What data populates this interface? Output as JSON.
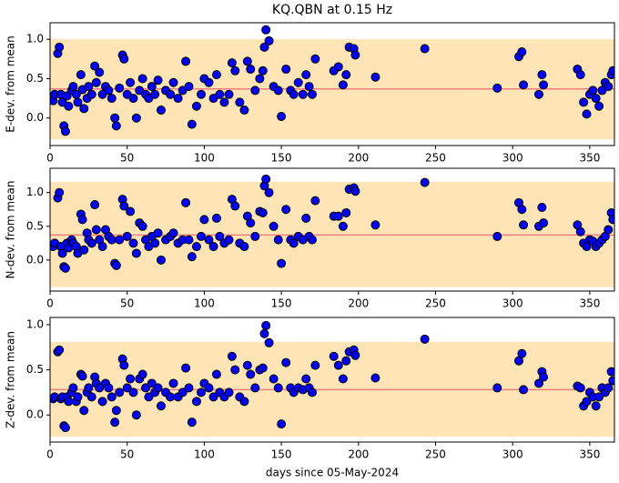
{
  "chart_data": [
    {
      "type": "scatter",
      "title": "KQ.QBN at 0.15 Hz",
      "ylabel": "E-dev. from mean",
      "x": [
        2,
        3,
        5,
        6,
        7,
        8,
        9,
        10,
        11,
        12,
        14,
        15,
        17,
        18,
        20,
        21,
        22,
        24,
        25,
        27,
        29,
        30,
        32,
        34,
        36,
        38,
        40,
        42,
        43,
        45,
        47,
        48,
        50,
        52,
        54,
        56,
        58,
        60,
        62,
        64,
        66,
        68,
        70,
        72,
        75,
        78,
        80,
        83,
        86,
        88,
        90,
        92,
        95,
        98,
        100,
        103,
        106,
        108,
        110,
        113,
        116,
        118,
        120,
        123,
        126,
        128,
        130,
        133,
        136,
        138,
        139,
        140,
        142,
        145,
        148,
        150,
        153,
        156,
        158,
        161,
        164,
        166,
        168,
        170,
        172,
        184,
        187,
        190,
        192,
        194,
        197,
        198,
        211,
        243,
        290,
        304,
        306,
        307,
        317,
        319,
        320,
        342,
        344,
        346,
        348,
        350,
        352,
        354,
        356,
        358,
        360,
        362,
        364,
        365
      ],
      "values": [
        0.22,
        0.3,
        0.82,
        0.9,
        0.3,
        0.2,
        -0.1,
        -0.17,
        0.28,
        0.15,
        0.35,
        0.4,
        0.3,
        0.2,
        0.55,
        0.36,
        0.12,
        0.25,
        0.4,
        0.3,
        0.66,
        0.45,
        0.58,
        0.3,
        0.4,
        0.35,
        0.25,
        0.0,
        -0.1,
        0.38,
        0.8,
        0.75,
        0.3,
        0.45,
        0.25,
        0.0,
        0.35,
        0.5,
        0.3,
        0.25,
        0.4,
        0.3,
        0.48,
        0.1,
        0.35,
        0.3,
        0.45,
        0.25,
        0.35,
        0.72,
        0.4,
        -0.08,
        0.15,
        0.3,
        0.5,
        0.45,
        0.25,
        0.55,
        0.3,
        0.2,
        0.3,
        0.7,
        0.6,
        0.2,
        0.1,
        0.72,
        0.62,
        0.35,
        0.5,
        0.6,
        0.9,
        1.12,
        0.98,
        0.4,
        0.35,
        0.02,
        0.62,
        0.35,
        0.3,
        0.45,
        0.3,
        0.55,
        0.4,
        0.3,
        0.75,
        0.6,
        0.65,
        0.42,
        0.55,
        0.9,
        0.88,
        0.8,
        0.52,
        0.88,
        0.38,
        0.78,
        0.84,
        0.42,
        0.3,
        0.55,
        0.42,
        0.62,
        0.55,
        0.2,
        0.05,
        0.3,
        0.35,
        0.25,
        0.15,
        0.35,
        0.45,
        0.4,
        0.55,
        0.6
      ],
      "color": "#0000ff",
      "mean": 0.37,
      "mean_color": "#f08080",
      "band": [
        -0.27,
        1.0
      ],
      "band_color": "#ffe4b5",
      "xlim": [
        0,
        366
      ],
      "xticks": [
        0,
        50,
        100,
        150,
        200,
        250,
        300,
        350
      ],
      "ylim": [
        -0.35,
        1.21
      ],
      "yticks": [
        {
          "value": 0,
          "label": "0.0"
        },
        {
          "value": 0.5,
          "label": "0.5"
        },
        {
          "value": 1,
          "label": "1.0"
        }
      ]
    },
    {
      "type": "scatter",
      "ylabel": "N-dev. from mean",
      "x": [
        2,
        3,
        5,
        6,
        7,
        8,
        9,
        10,
        11,
        12,
        14,
        15,
        17,
        18,
        20,
        21,
        22,
        24,
        25,
        27,
        29,
        30,
        32,
        34,
        36,
        38,
        40,
        42,
        43,
        45,
        47,
        48,
        50,
        52,
        54,
        56,
        58,
        60,
        62,
        64,
        66,
        68,
        70,
        72,
        75,
        78,
        80,
        83,
        86,
        88,
        90,
        92,
        95,
        98,
        100,
        103,
        106,
        108,
        110,
        113,
        116,
        118,
        120,
        123,
        126,
        128,
        130,
        133,
        136,
        138,
        139,
        140,
        142,
        145,
        148,
        150,
        153,
        156,
        158,
        161,
        164,
        166,
        168,
        170,
        172,
        184,
        187,
        190,
        192,
        194,
        197,
        198,
        211,
        243,
        290,
        304,
        306,
        307,
        317,
        319,
        320,
        342,
        344,
        346,
        348,
        350,
        352,
        354,
        356,
        358,
        360,
        362,
        364,
        365
      ],
      "values": [
        0.2,
        0.25,
        0.92,
        1.0,
        0.2,
        0.1,
        -0.1,
        -0.12,
        0.25,
        0.18,
        0.3,
        0.25,
        0.2,
        0.1,
        0.68,
        0.6,
        0.15,
        0.4,
        0.3,
        0.25,
        0.82,
        0.45,
        0.3,
        0.2,
        0.45,
        0.35,
        0.3,
        -0.05,
        -0.08,
        0.3,
        0.9,
        0.8,
        0.35,
        0.72,
        0.25,
        0.1,
        0.55,
        0.5,
        0.3,
        0.2,
        0.35,
        0.25,
        0.4,
        0.0,
        0.3,
        0.35,
        0.4,
        0.25,
        0.3,
        0.85,
        0.3,
        0.05,
        0.2,
        0.35,
        0.6,
        0.3,
        0.2,
        0.62,
        0.35,
        0.25,
        0.3,
        0.9,
        0.8,
        0.25,
        0.2,
        0.65,
        0.55,
        0.35,
        0.72,
        0.7,
        1.1,
        1.2,
        1.0,
        0.5,
        0.3,
        -0.05,
        0.75,
        0.3,
        0.25,
        0.35,
        0.3,
        0.62,
        0.35,
        0.3,
        0.88,
        0.65,
        0.65,
        0.5,
        0.7,
        1.05,
        1.07,
        1.02,
        0.52,
        1.15,
        0.35,
        0.85,
        0.75,
        0.52,
        0.5,
        0.78,
        0.55,
        0.52,
        0.42,
        0.25,
        0.2,
        0.3,
        0.28,
        0.2,
        0.25,
        0.3,
        0.35,
        0.45,
        0.7,
        0.6
      ],
      "color": "#0000ff",
      "mean": 0.37,
      "mean_color": "#f08080",
      "band": [
        -0.4,
        1.16
      ],
      "band_color": "#ffe4b5",
      "xlim": [
        0,
        366
      ],
      "xticks": [
        0,
        50,
        100,
        150,
        200,
        250,
        300,
        350
      ],
      "ylim": [
        -0.46,
        1.36
      ],
      "yticks": [
        {
          "value": 0,
          "label": "0.0"
        },
        {
          "value": 0.5,
          "label": "0.5"
        },
        {
          "value": 1,
          "label": "1.0"
        }
      ]
    },
    {
      "type": "scatter",
      "ylabel": "Z-dev. from mean",
      "xlabel": "days since 05-May-2024",
      "x": [
        2,
        3,
        5,
        6,
        7,
        8,
        9,
        10,
        11,
        12,
        14,
        15,
        17,
        18,
        20,
        21,
        22,
        24,
        25,
        27,
        29,
        30,
        32,
        34,
        36,
        38,
        40,
        42,
        43,
        45,
        47,
        48,
        50,
        52,
        54,
        56,
        58,
        60,
        62,
        64,
        66,
        68,
        70,
        72,
        75,
        78,
        80,
        83,
        86,
        88,
        90,
        92,
        95,
        98,
        100,
        103,
        106,
        108,
        110,
        113,
        116,
        118,
        120,
        123,
        126,
        128,
        130,
        133,
        136,
        138,
        139,
        140,
        142,
        145,
        148,
        150,
        153,
        156,
        158,
        161,
        164,
        166,
        168,
        170,
        172,
        184,
        187,
        190,
        192,
        194,
        197,
        198,
        211,
        243,
        290,
        304,
        306,
        307,
        317,
        319,
        320,
        342,
        344,
        346,
        348,
        350,
        352,
        354,
        356,
        358,
        360,
        362,
        364,
        365
      ],
      "values": [
        0.18,
        0.2,
        0.7,
        0.72,
        0.18,
        0.2,
        -0.12,
        -0.14,
        0.2,
        0.15,
        0.25,
        0.3,
        0.15,
        0.2,
        0.45,
        0.43,
        0.05,
        0.25,
        0.3,
        0.2,
        0.42,
        0.35,
        0.3,
        0.15,
        0.35,
        0.3,
        0.2,
        -0.08,
        0.05,
        0.25,
        0.62,
        0.55,
        0.3,
        0.4,
        0.25,
        0.0,
        0.4,
        0.45,
        0.3,
        0.2,
        0.35,
        0.25,
        0.3,
        0.1,
        0.25,
        0.2,
        0.35,
        0.2,
        0.25,
        0.52,
        0.3,
        -0.08,
        0.15,
        0.25,
        0.35,
        0.3,
        0.2,
        0.45,
        0.25,
        0.2,
        0.25,
        0.65,
        0.5,
        0.2,
        0.15,
        0.55,
        0.45,
        0.3,
        0.5,
        0.52,
        0.9,
        0.99,
        0.8,
        0.4,
        0.3,
        -0.1,
        0.58,
        0.3,
        0.25,
        0.3,
        0.28,
        0.4,
        0.3,
        0.25,
        0.55,
        0.65,
        0.55,
        0.4,
        0.6,
        0.7,
        0.72,
        0.66,
        0.41,
        0.84,
        0.3,
        0.6,
        0.68,
        0.28,
        0.35,
        0.48,
        0.42,
        0.32,
        0.3,
        0.1,
        0.15,
        0.25,
        0.2,
        0.1,
        0.2,
        0.3,
        0.25,
        0.3,
        0.48,
        0.38
      ],
      "color": "#0000ff",
      "mean": 0.28,
      "mean_color": "#f08080",
      "band": [
        -0.24,
        0.81
      ],
      "band_color": "#ffe4b5",
      "xlim": [
        0,
        366
      ],
      "xticks": [
        0,
        50,
        100,
        150,
        200,
        250,
        300,
        350
      ],
      "ylim": [
        -0.3,
        1.08
      ],
      "yticks": [
        {
          "value": 0,
          "label": "0.0"
        },
        {
          "value": 0.5,
          "label": "0.5"
        },
        {
          "value": 1,
          "label": "1.0"
        }
      ]
    }
  ]
}
